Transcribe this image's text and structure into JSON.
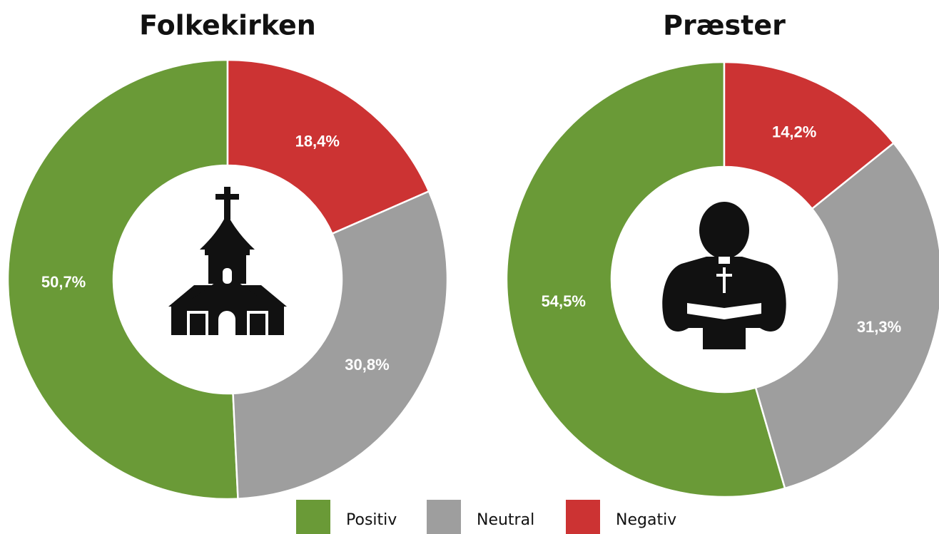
{
  "chart_data": [
    {
      "type": "donut",
      "title": "Folkekirken",
      "values": [
        50.7,
        30.8,
        18.4
      ],
      "value_labels": [
        "50,7%",
        "30,8%",
        "18,4%"
      ]
    },
    {
      "type": "donut",
      "title": "Præster",
      "values": [
        54.5,
        31.3,
        14.2
      ],
      "value_labels": [
        "54,5%",
        "31,3%",
        "14,2%"
      ]
    }
  ],
  "legend": {
    "categories": [
      "Positiv",
      "Neutral",
      "Negativ"
    ],
    "colors": [
      "#6a9a37",
      "#9e9e9e",
      "#cc3333"
    ]
  }
}
